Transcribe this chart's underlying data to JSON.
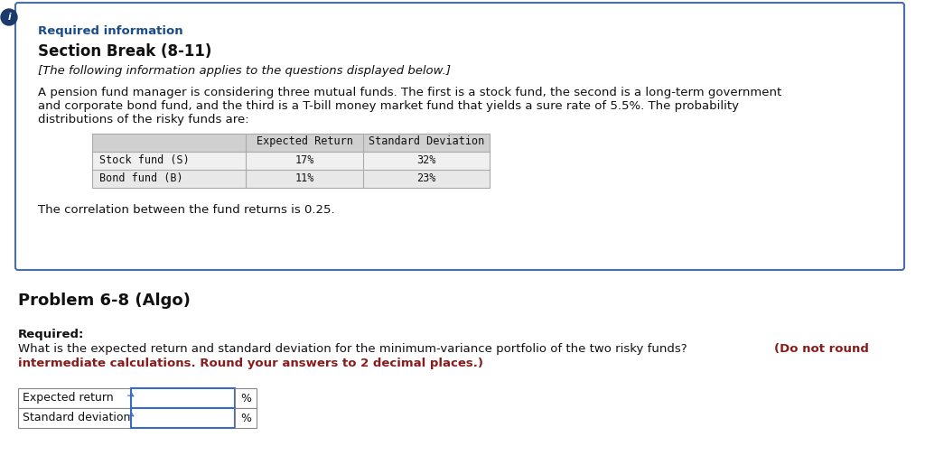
{
  "bg_color": "#ffffff",
  "top_box_border_color": "#4a6fa5",
  "top_box_bg": "#ffffff",
  "required_info_color": "#1a4b8c",
  "required_info_text": "Required information",
  "section_break_text": "Section Break (8-11)",
  "italic_text": "[The following information applies to the questions displayed below.]",
  "body_line1": "A pension fund manager is considering three mutual funds. The first is a stock fund, the second is a long-term government",
  "body_line2": "and corporate bond fund, and the third is a T-bill money market fund that yields a sure rate of 5.5%. The probability",
  "body_line3": "distributions of the risky funds are:",
  "table_col0_header": "",
  "table_col1_header": "Expected Return",
  "table_col2_header": "Standard Deviation",
  "table_rows": [
    [
      "Stock fund (S)",
      "17%",
      "32%"
    ],
    [
      "Bond fund (B)",
      "11%",
      "23%"
    ]
  ],
  "table_header_bg": "#d0d0d0",
  "table_row0_bg": "#f0f0f0",
  "table_row1_bg": "#e8e8e8",
  "correlation_text": "The correlation between the fund returns is 0.25.",
  "problem_title": "Problem 6-8 (Algo)",
  "required_label": "Required:",
  "question_black": "What is the expected return and standard deviation for the minimum-variance portfolio of the two risky funds?",
  "question_red_line1": " (Do not round",
  "question_red_line2": "intermediate calculations. Round your answers to 2 decimal places.)",
  "answer_rows": [
    "Expected return",
    "Standard deviation"
  ],
  "percent_sign": "%",
  "icon_color": "#1a3a6b",
  "red_color": "#8b1a1a",
  "dark_red": "#8b0000"
}
